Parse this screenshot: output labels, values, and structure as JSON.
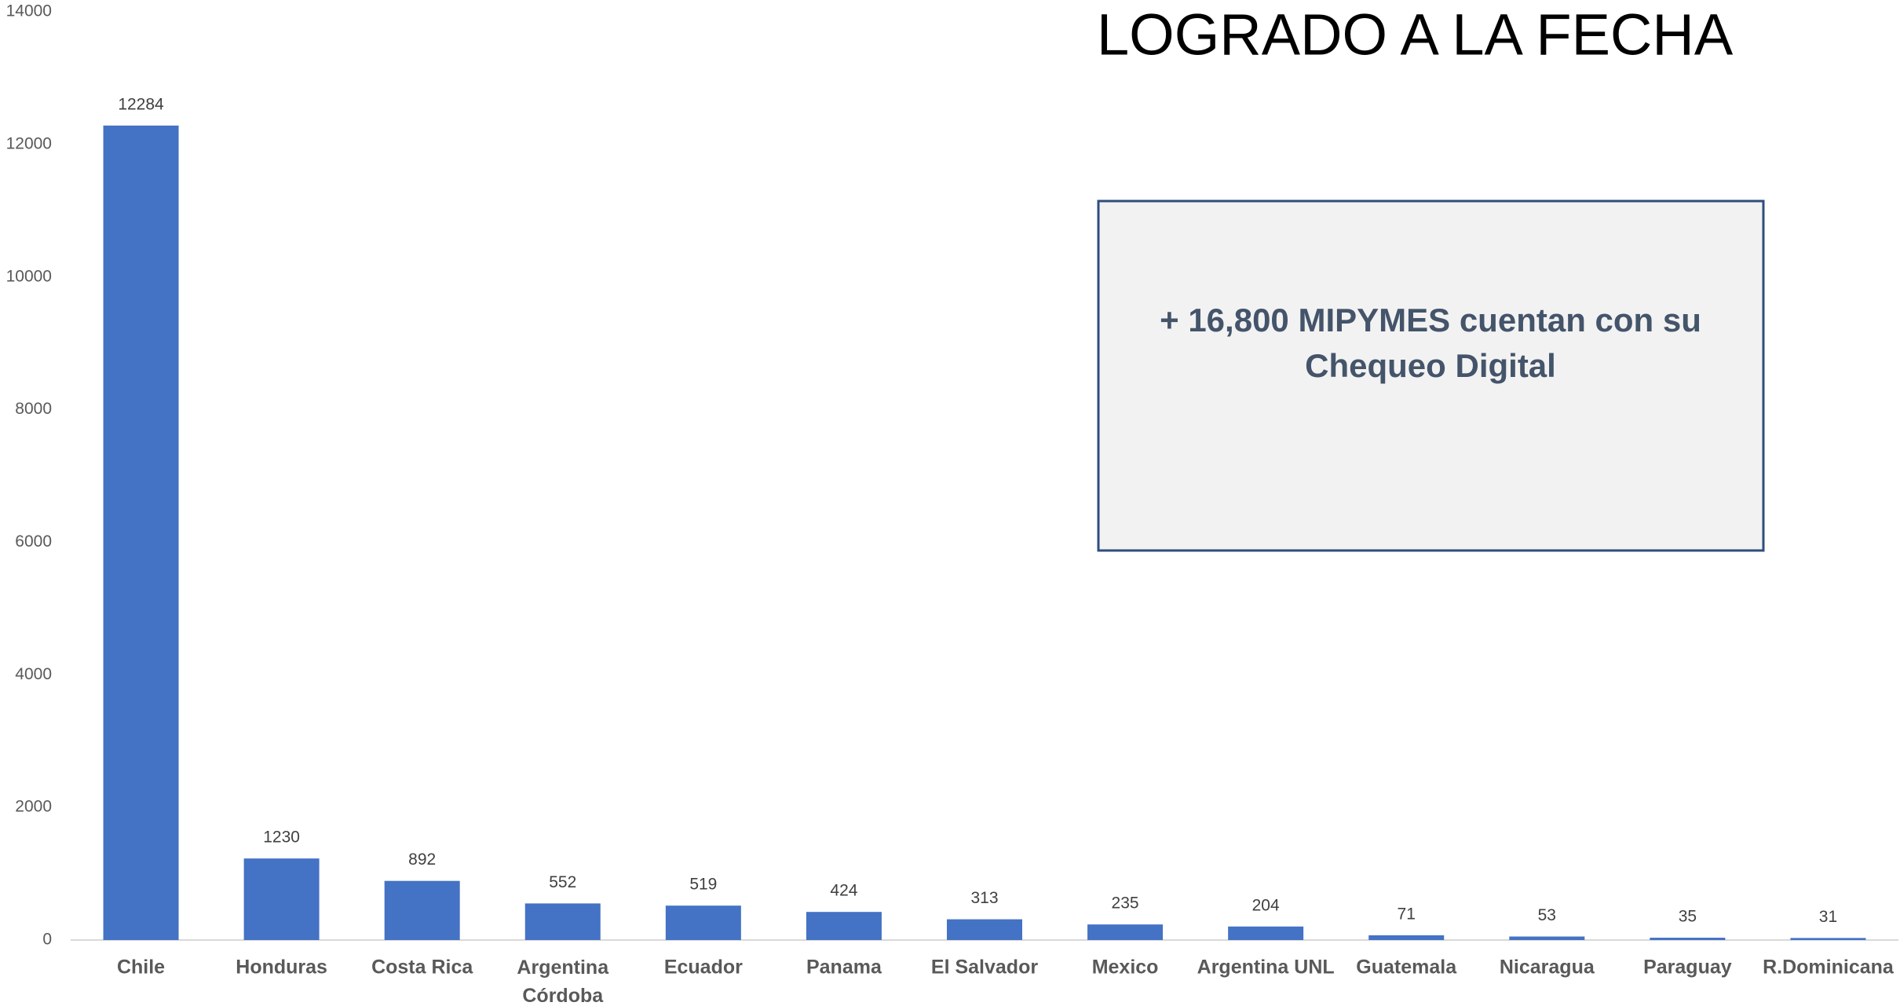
{
  "chart_data": {
    "type": "bar",
    "title": "LOGRADO A LA FECHA",
    "annotation": [
      "+ 16,800 MIPYMES cuentan con su",
      "Chequeo Digital"
    ],
    "categories": [
      "Chile",
      "Honduras",
      "Costa Rica",
      "Argentina\nCórdoba",
      "Ecuador",
      "Panama",
      "El Salvador",
      "Mexico",
      "Argentina UNL",
      "Guatemala",
      "Nicaragua",
      "Paraguay",
      "R.Dominicana"
    ],
    "values": [
      12284,
      1230,
      892,
      552,
      519,
      424,
      313,
      235,
      204,
      71,
      53,
      35,
      31
    ],
    "color": "#4472c4",
    "ylim": [
      0,
      14000
    ],
    "yticks": [
      0,
      2000,
      4000,
      6000,
      8000,
      10000,
      12000,
      14000
    ],
    "grid": false
  }
}
